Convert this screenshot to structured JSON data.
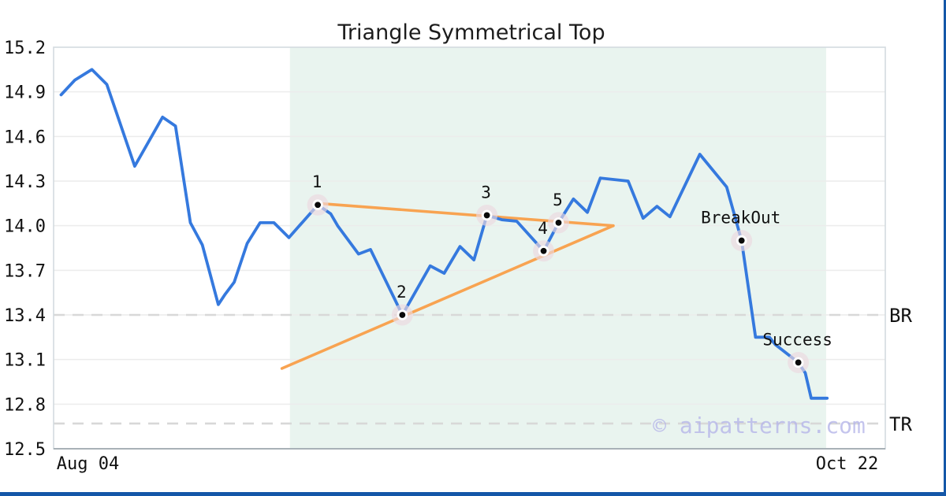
{
  "title": "Triangle Symmetrical Top",
  "watermark": "© aipatterns.com",
  "colors": {
    "price_line": "#3579DE",
    "pattern_line": "#F8A351",
    "zone_fill": "#E9F4EF",
    "grid": "#ECECEC",
    "border": "#D4DBDF",
    "axis_bottom": "#A8B1B7",
    "dashed_level": "#D8D8D8",
    "marker_halo": "#ECD8DF",
    "marker_ring": "#FFFFFF",
    "marker_dot": "#0A0A0A",
    "text": "#111111",
    "watermark_color": "#B5B5E8",
    "accent_bar": "#1457A8"
  },
  "chart_data": {
    "type": "line",
    "title": "Triangle Symmetrical Top",
    "xlabel": "",
    "ylabel": "",
    "xlim": [
      0,
      79
    ],
    "ylim": [
      12.5,
      15.2
    ],
    "grid": true,
    "yticks": [
      {
        "label": "15.2",
        "value": 15.2
      },
      {
        "label": "14.9",
        "value": 14.9
      },
      {
        "label": "14.6",
        "value": 14.6
      },
      {
        "label": "14.3",
        "value": 14.3
      },
      {
        "label": "14.0",
        "value": 14.0
      },
      {
        "label": "13.7",
        "value": 13.7
      },
      {
        "label": "13.4",
        "value": 13.4
      },
      {
        "label": "13.1",
        "value": 13.1
      },
      {
        "label": "12.8",
        "value": 12.8
      },
      {
        "label": "12.5",
        "value": 12.5
      }
    ],
    "xticks": [
      {
        "label": "Aug 04",
        "day": 2.5
      },
      {
        "label": "Oct 22",
        "day": 78.8
      }
    ],
    "highlight_zone": {
      "day_start": 22.8,
      "day_end": 76.7
    },
    "levels": [
      {
        "label": "BR",
        "value": 13.4
      },
      {
        "label": "TR",
        "value": 12.67
      }
    ],
    "series": [
      {
        "name": "price",
        "points": [
          [
            -0.2,
            14.88
          ],
          [
            1.2,
            14.98
          ],
          [
            2.9,
            15.05
          ],
          [
            4.4,
            14.95
          ],
          [
            7.2,
            14.4
          ],
          [
            10.0,
            14.73
          ],
          [
            11.3,
            14.67
          ],
          [
            12.8,
            14.02
          ],
          [
            14.0,
            13.87
          ],
          [
            15.6,
            13.47
          ],
          [
            16.3,
            13.54
          ],
          [
            17.2,
            13.62
          ],
          [
            18.5,
            13.88
          ],
          [
            19.8,
            14.02
          ],
          [
            21.2,
            14.02
          ],
          [
            22.7,
            13.92
          ],
          [
            25.6,
            14.14
          ],
          [
            26.9,
            14.08
          ],
          [
            27.6,
            14.0
          ],
          [
            29.7,
            13.81
          ],
          [
            30.9,
            13.84
          ],
          [
            34.1,
            13.4
          ],
          [
            36.9,
            13.73
          ],
          [
            38.3,
            13.68
          ],
          [
            39.9,
            13.86
          ],
          [
            41.3,
            13.77
          ],
          [
            42.6,
            14.07
          ],
          [
            44.1,
            14.04
          ],
          [
            45.6,
            14.03
          ],
          [
            48.3,
            13.83
          ],
          [
            49.8,
            14.02
          ],
          [
            51.3,
            14.18
          ],
          [
            52.7,
            14.09
          ],
          [
            54.0,
            14.32
          ],
          [
            56.8,
            14.3
          ],
          [
            58.3,
            14.05
          ],
          [
            59.7,
            14.13
          ],
          [
            61.0,
            14.06
          ],
          [
            64.0,
            14.48
          ],
          [
            66.7,
            14.26
          ],
          [
            68.2,
            13.9
          ],
          [
            69.6,
            13.25
          ],
          [
            71.0,
            13.25
          ],
          [
            71.6,
            13.2
          ],
          [
            73.9,
            13.08
          ],
          [
            74.6,
            13.01
          ],
          [
            75.2,
            12.84
          ],
          [
            76.8,
            12.84
          ]
        ]
      }
    ],
    "pattern_lines": [
      {
        "name": "upper-trendline",
        "points": [
          [
            25.6,
            14.15
          ],
          [
            55.3,
            14.0
          ]
        ]
      },
      {
        "name": "lower-trendline",
        "points": [
          [
            22.0,
            13.04
          ],
          [
            55.3,
            14.0
          ]
        ]
      }
    ],
    "markers": [
      {
        "label": "1",
        "day": 25.6,
        "value": 14.14
      },
      {
        "label": "2",
        "day": 34.1,
        "value": 13.4
      },
      {
        "label": "3",
        "day": 42.6,
        "value": 14.07
      },
      {
        "label": "4",
        "day": 48.3,
        "value": 13.83
      },
      {
        "label": "5",
        "day": 49.8,
        "value": 14.02
      },
      {
        "label": "BreakOut",
        "day": 68.2,
        "value": 13.9
      },
      {
        "label": "Success",
        "day": 73.9,
        "value": 13.08
      }
    ]
  }
}
